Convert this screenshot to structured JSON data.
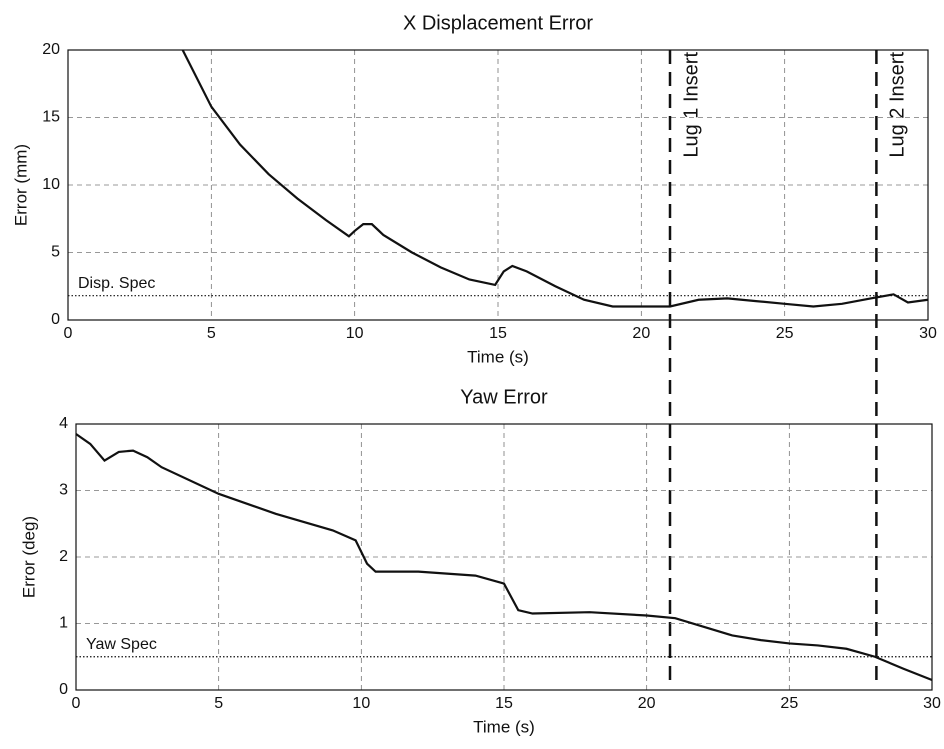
{
  "chart_data": [
    {
      "type": "line",
      "title": "X Displacement Error",
      "xlabel": "Time (s)",
      "ylabel": "Error (mm)",
      "xlim": [
        0,
        30
      ],
      "ylim": [
        0,
        20
      ],
      "xticks": [
        0,
        5,
        10,
        15,
        20,
        25,
        30
      ],
      "yticks": [
        0,
        5,
        10,
        15,
        20
      ],
      "grid": true,
      "series": [
        {
          "color": "#111111",
          "x": [
            4,
            5,
            6,
            7,
            8,
            9,
            9.8,
            10,
            10.3,
            10.6,
            11,
            12,
            13,
            14,
            14.9,
            15.2,
            15.5,
            16,
            17,
            18,
            19,
            20,
            21,
            22,
            23,
            24,
            25,
            26,
            27,
            28,
            28.8,
            29.3,
            30
          ],
          "values": [
            20,
            15.8,
            13,
            10.8,
            9,
            7.4,
            6.2,
            6.6,
            7.1,
            7.1,
            6.3,
            5,
            3.9,
            3,
            2.6,
            3.6,
            4,
            3.6,
            2.5,
            1.5,
            1.0,
            1.0,
            1.0,
            1.5,
            1.6,
            1.4,
            1.2,
            1.0,
            1.2,
            1.6,
            1.9,
            1.3,
            1.5
          ]
        }
      ],
      "spec": {
        "value": 1.8,
        "label": "Disp. Spec"
      },
      "vlines": [
        {
          "x": 21,
          "label": "Lug 1 Insert"
        },
        {
          "x": 28.2,
          "label": "Lug 2 Insert"
        }
      ]
    },
    {
      "type": "line",
      "title": "Yaw Error",
      "xlabel": "Time (s)",
      "ylabel": "Error (deg)",
      "xlim": [
        0,
        30
      ],
      "ylim": [
        0,
        4
      ],
      "xticks": [
        0,
        5,
        10,
        15,
        20,
        25,
        30
      ],
      "yticks": [
        0,
        1,
        2,
        3,
        4
      ],
      "grid": true,
      "series": [
        {
          "color": "#111111",
          "x": [
            0,
            0.5,
            1,
            1.5,
            2,
            2.5,
            3,
            5,
            7,
            9,
            9.8,
            10.2,
            10.5,
            12,
            14,
            15,
            15.5,
            16,
            18,
            20,
            21,
            22,
            23,
            24,
            25,
            26,
            27,
            28,
            29,
            30
          ],
          "values": [
            3.85,
            3.7,
            3.45,
            3.58,
            3.6,
            3.5,
            3.35,
            2.95,
            2.65,
            2.4,
            2.25,
            1.9,
            1.78,
            1.78,
            1.72,
            1.6,
            1.2,
            1.15,
            1.17,
            1.12,
            1.08,
            0.95,
            0.82,
            0.75,
            0.7,
            0.67,
            0.62,
            0.5,
            0.32,
            0.15
          ]
        }
      ],
      "spec": {
        "value": 0.5,
        "label": "Yaw Spec"
      }
    }
  ]
}
